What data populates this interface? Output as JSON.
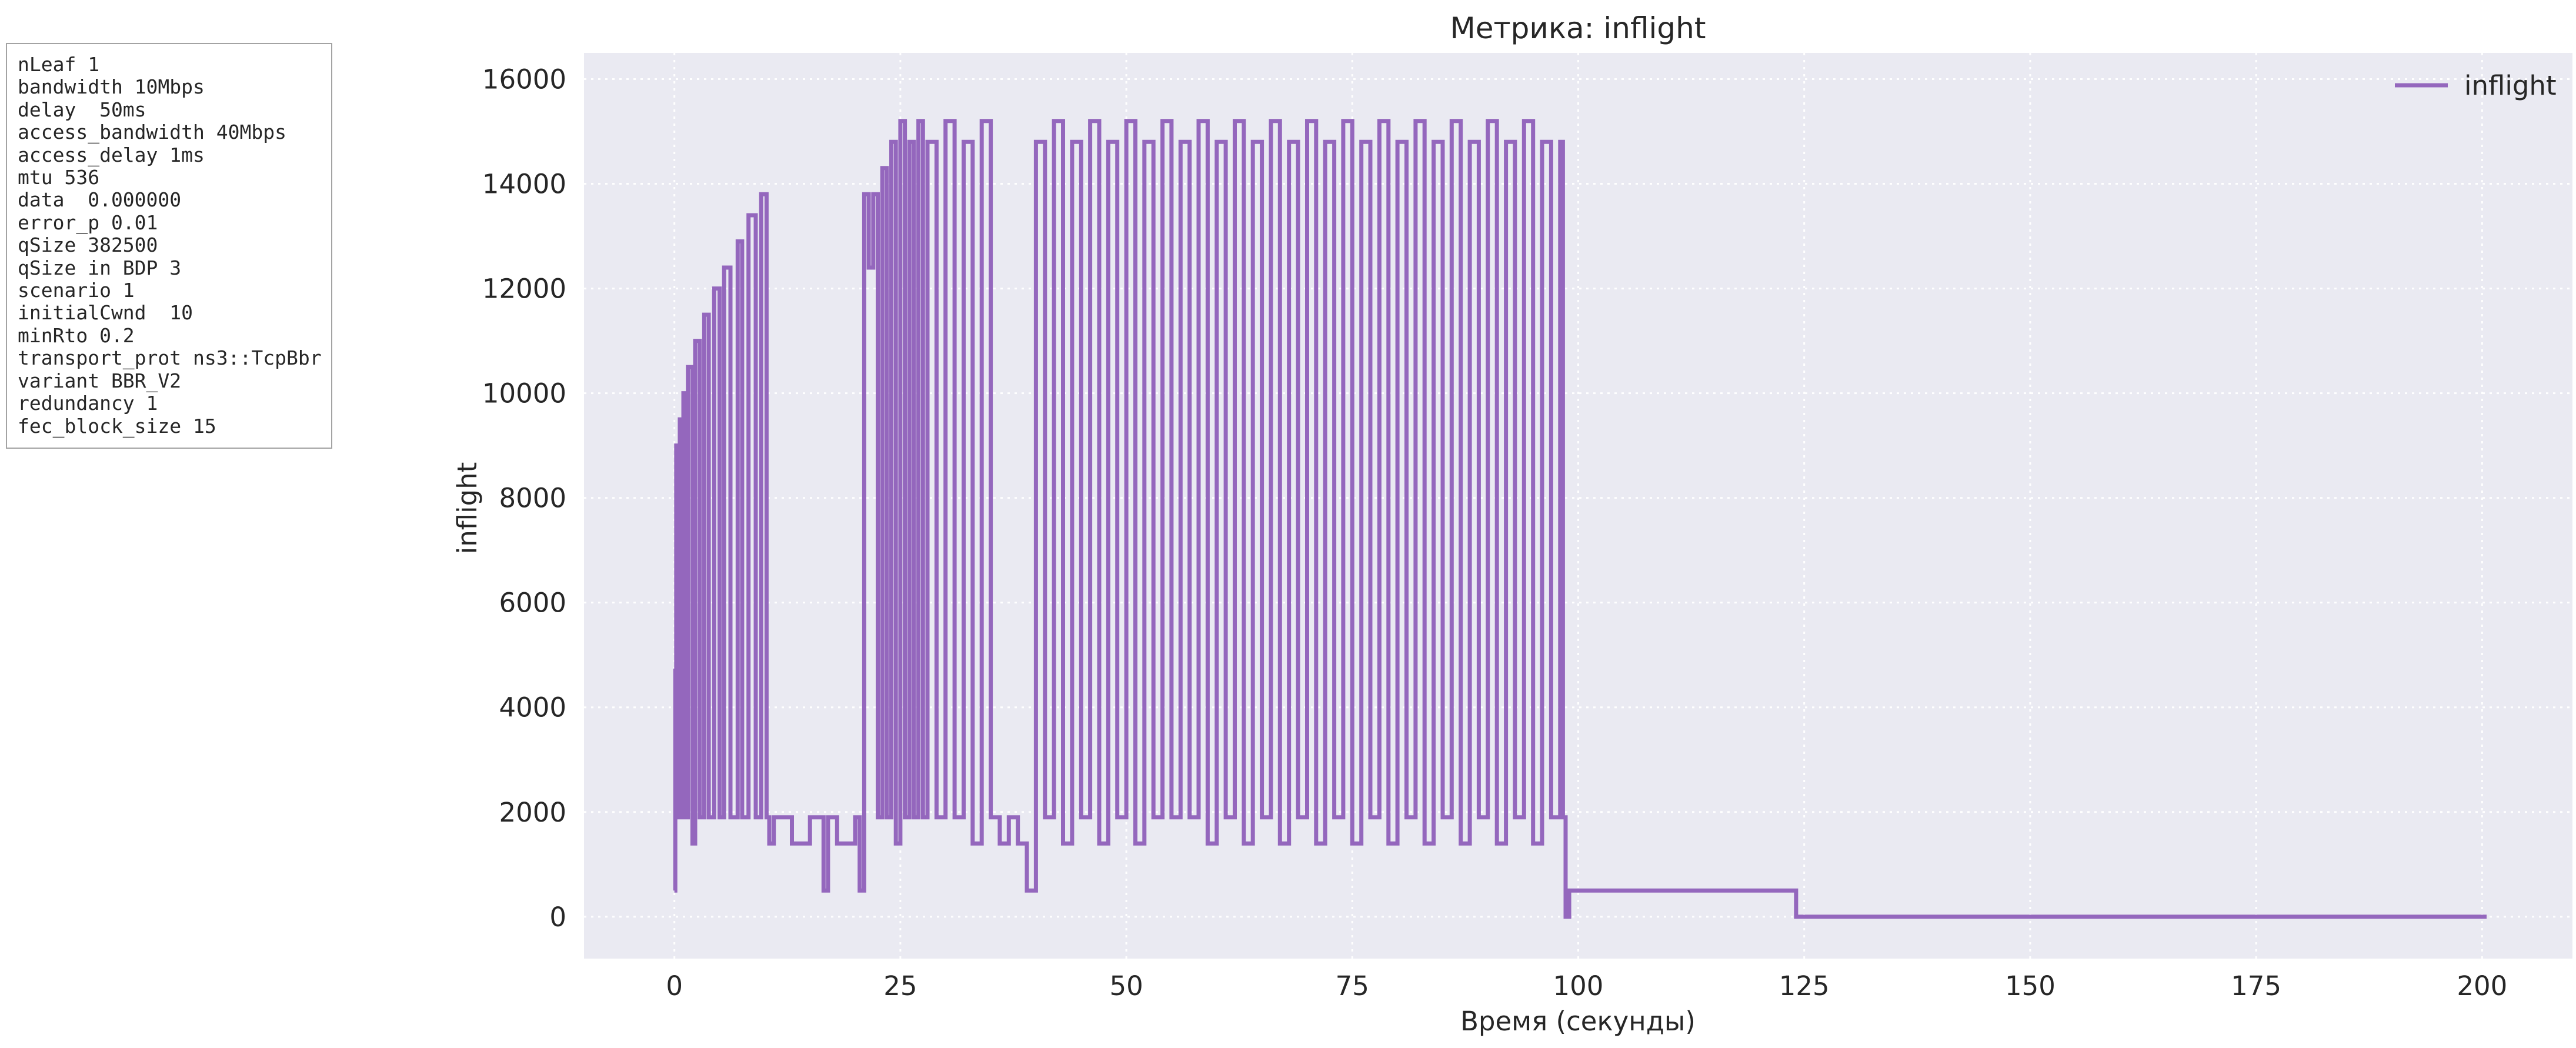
{
  "params": [
    "nLeaf 1",
    "bandwidth 10Mbps",
    "delay  50ms",
    "access_bandwidth 40Mbps",
    "access_delay 1ms",
    "mtu 536",
    "data  0.000000",
    "error_p 0.01",
    "qSize 382500",
    "qSize in BDP 3",
    "scenario 1",
    "initialCwnd  10",
    "minRto 0.2",
    "transport_prot ns3::TcpBbr",
    "variant BBR_V2",
    "redundancy 1",
    "fec_block_size 15"
  ],
  "chart_data": {
    "type": "line",
    "title": "Метрика: inflight",
    "xlabel": "Время (секунды)",
    "ylabel": "inflight",
    "xlim": [
      -10,
      210
    ],
    "ylim": [
      -800,
      16500
    ],
    "x_ticks": [
      0,
      25,
      50,
      75,
      100,
      125,
      150,
      175,
      200
    ],
    "y_ticks": [
      0,
      2000,
      4000,
      6000,
      8000,
      10000,
      12000,
      14000,
      16000
    ],
    "grid": true,
    "legend": "top-right",
    "series": [
      {
        "name": "inflight",
        "color": "#9467bd",
        "x": [
          0.0,
          0.1,
          0.2,
          0.4,
          0.6,
          0.8,
          1.0,
          1.2,
          1.5,
          2.0,
          2.3,
          2.8,
          3.3,
          3.8,
          4.4,
          5.0,
          5.5,
          6.2,
          7.0,
          7.5,
          8.2,
          9.0,
          9.6,
          10.2,
          10.5,
          11.0,
          13.0,
          15.0,
          16.5,
          17.0,
          18.0,
          20.0,
          20.5,
          21.0,
          21.5,
          22.0,
          22.5,
          23.0,
          23.5,
          24.0,
          24.5,
          25.0,
          25.5,
          26.0,
          26.5,
          27.0,
          27.5,
          28.0,
          29.0,
          30.0,
          31.0,
          32.0,
          33.0,
          34.0,
          35.0,
          36.0,
          37.0,
          38.0,
          39.0,
          40.0,
          41.0,
          42.0,
          43.0,
          44.0,
          45.0,
          46.0,
          47.0,
          48.0,
          49.0,
          50.0,
          51.0,
          52.0,
          53.0,
          54.0,
          55.0,
          56.0,
          57.0,
          58.0,
          59.0,
          60.0,
          61.0,
          62.0,
          63.0,
          64.0,
          65.0,
          66.0,
          67.0,
          68.0,
          69.0,
          70.0,
          71.0,
          72.0,
          73.0,
          74.0,
          75.0,
          76.0,
          77.0,
          78.0,
          79.0,
          80.0,
          81.0,
          82.0,
          83.0,
          84.0,
          85.0,
          86.0,
          87.0,
          88.0,
          89.0,
          90.0,
          91.0,
          92.0,
          93.0,
          94.0,
          95.0,
          96.0,
          97.0,
          98.0,
          98.3,
          98.6,
          99.0,
          124.0,
          124.1,
          200.5
        ],
        "y": [
          500,
          4700,
          9000,
          1900,
          9500,
          1900,
          10000,
          1900,
          10500,
          1400,
          11000,
          1900,
          11500,
          1900,
          12000,
          1900,
          12400,
          1900,
          12900,
          1900,
          13400,
          1900,
          13800,
          1900,
          1400,
          1900,
          1400,
          1900,
          500,
          1900,
          1400,
          1900,
          500,
          13800,
          12400,
          13800,
          1900,
          14300,
          1900,
          14800,
          1400,
          15200,
          1900,
          14800,
          1900,
          15200,
          1900,
          14800,
          1900,
          15200,
          1900,
          14800,
          1400,
          15200,
          1900,
          1400,
          1900,
          1400,
          500,
          14800,
          1900,
          15200,
          1400,
          14800,
          1900,
          15200,
          1400,
          14800,
          1900,
          15200,
          1400,
          14800,
          1900,
          15200,
          1900,
          14800,
          1900,
          15200,
          1400,
          14800,
          1900,
          15200,
          1400,
          14800,
          1900,
          15200,
          1400,
          14800,
          1900,
          15200,
          1400,
          14800,
          1900,
          15200,
          1400,
          14800,
          1900,
          15200,
          1400,
          14800,
          1900,
          15200,
          1400,
          14800,
          1900,
          15200,
          1400,
          14800,
          1900,
          15200,
          1400,
          14800,
          1900,
          15200,
          1400,
          14800,
          1900,
          14800,
          1900,
          0,
          500,
          500,
          0,
          0
        ]
      }
    ]
  }
}
